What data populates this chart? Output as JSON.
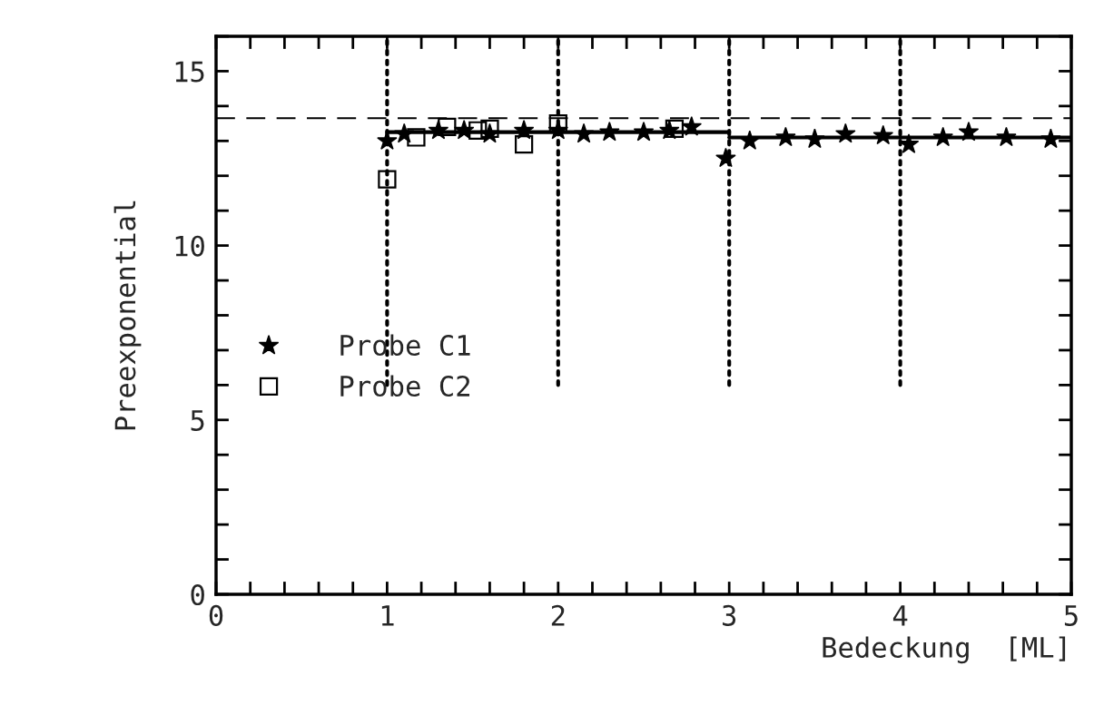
{
  "chart_data": {
    "type": "scatter",
    "xlabel": "Bedeckung  [ML]",
    "ylabel": "Preexponential",
    "xlim": [
      0,
      5
    ],
    "ylim": [
      0,
      16
    ],
    "xticks": [
      0,
      {
        "value": 0.2,
        "label": null
      },
      {
        "value": 0.4,
        "label": null
      },
      {
        "value": 0.6,
        "label": null
      },
      {
        "value": 0.8,
        "label": null
      },
      1,
      {
        "value": 1.2,
        "label": null
      },
      {
        "value": 1.4,
        "label": null
      },
      {
        "value": 1.6,
        "label": null
      },
      {
        "value": 1.8,
        "label": null
      },
      2,
      {
        "value": 2.2,
        "label": null
      },
      {
        "value": 2.4,
        "label": null
      },
      {
        "value": 2.6,
        "label": null
      },
      {
        "value": 2.8,
        "label": null
      },
      3,
      {
        "value": 3.2,
        "label": null
      },
      {
        "value": 3.4,
        "label": null
      },
      {
        "value": 3.6,
        "label": null
      },
      {
        "value": 3.8,
        "label": null
      },
      4,
      {
        "value": 4.2,
        "label": null
      },
      {
        "value": 4.4,
        "label": null
      },
      {
        "value": 4.6,
        "label": null
      },
      {
        "value": 4.8,
        "label": null
      },
      5
    ],
    "yticks": [
      0,
      {
        "value": 1,
        "label": null
      },
      {
        "value": 2,
        "label": null
      },
      {
        "value": 3,
        "label": null
      },
      {
        "value": 4,
        "label": null
      },
      5,
      {
        "value": 6,
        "label": null
      },
      {
        "value": 7,
        "label": null
      },
      {
        "value": 8,
        "label": null
      },
      {
        "value": 9,
        "label": null
      },
      10,
      {
        "value": 11,
        "label": null
      },
      {
        "value": 12,
        "label": null
      },
      {
        "value": 13,
        "label": null
      },
      {
        "value": 14,
        "label": null
      },
      15,
      {
        "value": 16,
        "label": null
      }
    ],
    "grid": false,
    "legend": "bottom left",
    "ref_lines": [
      {
        "axis": "y",
        "value": 13.65,
        "line_style": "dashed",
        "color": "#000000"
      }
    ],
    "series": [
      {
        "name": "Probe C1",
        "color": "#000000",
        "marker": "star",
        "x": [
          1.0,
          1.1,
          1.3,
          1.45,
          1.6,
          1.8,
          2.0,
          2.15,
          2.3,
          2.5,
          2.65,
          2.78,
          2.98,
          3.12,
          3.33,
          3.5,
          3.68,
          3.9,
          4.05,
          4.25,
          4.4,
          4.62,
          4.88
        ],
        "values": [
          13.0,
          13.2,
          13.3,
          13.3,
          13.2,
          13.3,
          13.3,
          13.2,
          13.25,
          13.25,
          13.3,
          13.4,
          12.5,
          13.0,
          13.1,
          13.05,
          13.2,
          13.15,
          12.9,
          13.1,
          13.25,
          13.1,
          13.05
        ]
      },
      {
        "name": "Probe C2",
        "color": "#000000",
        "marker": "square",
        "x": [
          1.0,
          1.17,
          1.35,
          1.53,
          1.6,
          1.8,
          2.0,
          2.68
        ],
        "values": [
          11.9,
          13.1,
          13.4,
          13.3,
          13.35,
          12.9,
          13.5,
          13.35
        ]
      },
      {
        "type": "line",
        "color": "#000000",
        "line_style": "solid",
        "x": [
          1,
          3
        ],
        "values": [
          13.25,
          13.25
        ]
      },
      {
        "type": "line",
        "color": "#000000",
        "line_style": "solid",
        "x": [
          3,
          5
        ],
        "values": [
          13.1,
          13.1
        ]
      },
      {
        "type": "line",
        "color": "#000000",
        "line_style": "dotted",
        "x": [
          1,
          1
        ],
        "values": [
          6,
          16
        ]
      },
      {
        "type": "line",
        "color": "#000000",
        "line_style": "dotted",
        "x": [
          2,
          2
        ],
        "values": [
          6,
          16
        ]
      },
      {
        "type": "line",
        "color": "#000000",
        "line_style": "dotted",
        "x": [
          3,
          3
        ],
        "values": [
          6,
          16
        ]
      },
      {
        "type": "line",
        "color": "#000000",
        "line_style": "dotted",
        "x": [
          4,
          4
        ],
        "values": [
          6,
          16
        ]
      }
    ]
  }
}
